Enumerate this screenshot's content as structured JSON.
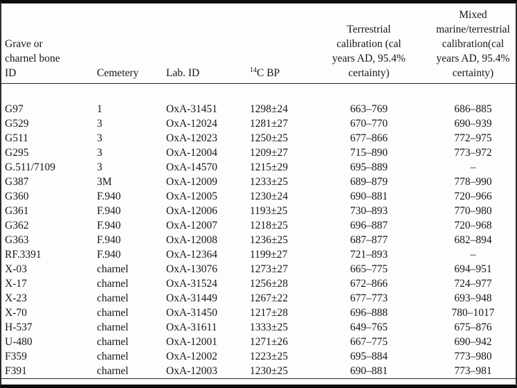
{
  "page": {
    "background_color": "#fdfdfb",
    "frame_border_color": "#0b0b0b",
    "text_color": "#151515"
  },
  "table": {
    "header": {
      "id": "Grave or\ncharnel bone\nID",
      "cemetery": "Cemetery",
      "lab": "Lab. ID",
      "c14_sup": "14",
      "c14_label": "C BP",
      "terrestrial": "Terrestrial\ncalibration (cal\nyears AD, 95.4%\ncertainty)",
      "mixed": "Mixed\nmarine/terrestrial\ncalibration(cal\nyears AD, 95.4%\ncertainty)"
    },
    "row_keys": [
      "id",
      "cemetery",
      "lab",
      "c14",
      "terrestrial",
      "mixed"
    ],
    "rows": [
      {
        "id": "G97",
        "cemetery": "1",
        "lab": "OxA-31451",
        "c14": "1298±24",
        "terrestrial": "663–769",
        "mixed": "686–885"
      },
      {
        "id": "G529",
        "cemetery": "3",
        "lab": "OxA-12024",
        "c14": "1281±27",
        "terrestrial": "670–770",
        "mixed": "690–939"
      },
      {
        "id": "G511",
        "cemetery": "3",
        "lab": "OxA-12023",
        "c14": "1250±25",
        "terrestrial": "677–866",
        "mixed": "772–975"
      },
      {
        "id": "G295",
        "cemetery": "3",
        "lab": "OxA-12004",
        "c14": "1209±27",
        "terrestrial": "715–890",
        "mixed": "773–972"
      },
      {
        "id": "G.511/7109",
        "cemetery": "3",
        "lab": "OxA-14570",
        "c14": "1215±29",
        "terrestrial": "695–889",
        "mixed": "–"
      },
      {
        "id": "G387",
        "cemetery": "3M",
        "lab": "OxA-12009",
        "c14": "1233±25",
        "terrestrial": "689–879",
        "mixed": "778–990"
      },
      {
        "id": "G360",
        "cemetery": "F.940",
        "lab": "OxA-12005",
        "c14": "1230±24",
        "terrestrial": "690–881",
        "mixed": "720–966"
      },
      {
        "id": "G361",
        "cemetery": "F.940",
        "lab": "OxA-12006",
        "c14": "1193±25",
        "terrestrial": "730–893",
        "mixed": "770–980"
      },
      {
        "id": "G362",
        "cemetery": "F.940",
        "lab": "OxA-12007",
        "c14": "1218±25",
        "terrestrial": "696–887",
        "mixed": "720–968"
      },
      {
        "id": "G363",
        "cemetery": "F.940",
        "lab": "OxA-12008",
        "c14": "1236±25",
        "terrestrial": "687–877",
        "mixed": "682–894"
      },
      {
        "id": "RF.3391",
        "cemetery": "F.940",
        "lab": "OxA-12364",
        "c14": "1199±27",
        "terrestrial": "721–893",
        "mixed": "–"
      },
      {
        "id": "X-03",
        "cemetery": "charnel",
        "lab": "OxA-13076",
        "c14": "1273±27",
        "terrestrial": "665–775",
        "mixed": "694–951"
      },
      {
        "id": "X-17",
        "cemetery": "charnel",
        "lab": "OxA-31524",
        "c14": "1256±28",
        "terrestrial": "672–866",
        "mixed": "724–977"
      },
      {
        "id": "X-23",
        "cemetery": "charnel",
        "lab": "OxA-31449",
        "c14": "1267±22",
        "terrestrial": "677–773",
        "mixed": "693–948"
      },
      {
        "id": "X-70",
        "cemetery": "charnel",
        "lab": "OxA-31450",
        "c14": "1217±28",
        "terrestrial": "696–888",
        "mixed": "780–1017"
      },
      {
        "id": "H-537",
        "cemetery": "charnel",
        "lab": "OxA-31611",
        "c14": "1333±25",
        "terrestrial": "649–765",
        "mixed": "675–876"
      },
      {
        "id": "U-480",
        "cemetery": "charnel",
        "lab": "OxA-12001",
        "c14": "1271±26",
        "terrestrial": "667–775",
        "mixed": "690–942"
      },
      {
        "id": "F359",
        "cemetery": "charnel",
        "lab": "OxA-12002",
        "c14": "1223±25",
        "terrestrial": "695–884",
        "mixed": "773–980"
      },
      {
        "id": "F391",
        "cemetery": "charnel",
        "lab": "OxA-12003",
        "c14": "1230±25",
        "terrestrial": "690–881",
        "mixed": "773–981"
      }
    ]
  }
}
